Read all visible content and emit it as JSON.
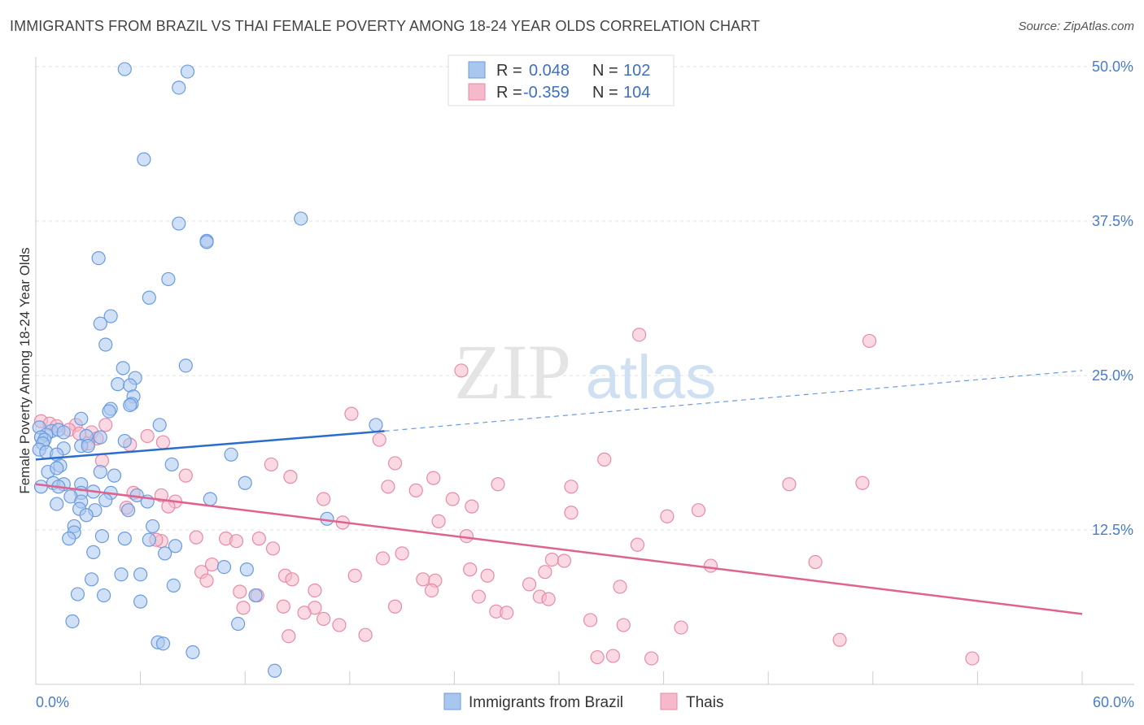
{
  "header": {
    "title": "IMMIGRANTS FROM BRAZIL VS THAI FEMALE POVERTY AMONG 18-24 YEAR OLDS CORRELATION CHART",
    "source": "Source: ZipAtlas.com"
  },
  "watermark": {
    "zip": "ZIP",
    "atlas": "atlas"
  },
  "colors": {
    "blue_fill": "#a9c6ee",
    "blue_stroke": "#6a9be0",
    "blue_line": "#2a6dcc",
    "pink_fill": "#f5b9cb",
    "pink_stroke": "#e88aa8",
    "pink_line": "#e0628e",
    "tick_text": "#4a7cc9",
    "grid": "#dddddd"
  },
  "legend": {
    "rows": [
      {
        "r_label": "R =",
        "r_value": "0.048",
        "n_label": "N =",
        "n_value": "102"
      },
      {
        "r_label": "R =",
        "r_value": "-0.359",
        "n_label": "N =",
        "n_value": "104"
      }
    ]
  },
  "bottom_legend": [
    "Immigrants from Brazil",
    "Thais"
  ],
  "chart_data": {
    "type": "scatter",
    "title": "IMMIGRANTS FROM BRAZIL VS THAI FEMALE POVERTY AMONG 18-24 YEAR OLDS CORRELATION CHART",
    "xlabel": "",
    "ylabel": "Female Poverty Among 18-24 Year Olds",
    "xlim": [
      0,
      60
    ],
    "ylim": [
      0,
      50
    ],
    "x_tick_labels": [
      "0.0%",
      "60.0%"
    ],
    "y_ticks": [
      12.5,
      25.0,
      37.5,
      50.0
    ],
    "y_tick_labels": [
      "12.5%",
      "25.0%",
      "37.5%",
      "50.0%"
    ],
    "grid": true,
    "legend_position": "top-center",
    "series": [
      {
        "name": "Immigrants from Brazil",
        "color": "#a9c6ee",
        "trend": {
          "x0": 0,
          "y0": 18.2,
          "x1": 20,
          "y1": 20.5,
          "dashed_to_x": 60,
          "dashed_to_y": 25.4
        },
        "points": [
          [
            5.1,
            49.8
          ],
          [
            8.7,
            49.6
          ],
          [
            8.2,
            48.3
          ],
          [
            6.2,
            42.5
          ],
          [
            15.2,
            37.7
          ],
          [
            8.2,
            37.3
          ],
          [
            9.8,
            35.9
          ],
          [
            9.8,
            35.8
          ],
          [
            3.6,
            34.5
          ],
          [
            7.6,
            32.8
          ],
          [
            6.5,
            31.3
          ],
          [
            4.3,
            29.8
          ],
          [
            3.7,
            29.2
          ],
          [
            4.0,
            27.5
          ],
          [
            8.6,
            25.8
          ],
          [
            5.0,
            25.6
          ],
          [
            5.7,
            24.8
          ],
          [
            4.7,
            24.3
          ],
          [
            5.4,
            24.2
          ],
          [
            5.6,
            23.3
          ],
          [
            5.5,
            22.7
          ],
          [
            5.4,
            22.6
          ],
          [
            4.3,
            22.3
          ],
          [
            2.6,
            21.5
          ],
          [
            4.2,
            22.1
          ],
          [
            7.1,
            21.0
          ],
          [
            19.5,
            21.0
          ],
          [
            0.2,
            20.8
          ],
          [
            0.9,
            20.5
          ],
          [
            1.3,
            20.6
          ],
          [
            0.6,
            20.2
          ],
          [
            0.3,
            20.0
          ],
          [
            0.5,
            19.8
          ],
          [
            0.4,
            19.5
          ],
          [
            1.6,
            20.4
          ],
          [
            2.9,
            20.1
          ],
          [
            1.6,
            19.1
          ],
          [
            2.6,
            19.3
          ],
          [
            3.7,
            20.0
          ],
          [
            3.0,
            19.3
          ],
          [
            5.1,
            19.7
          ],
          [
            0.2,
            19.0
          ],
          [
            0.6,
            18.8
          ],
          [
            1.2,
            18.6
          ],
          [
            11.2,
            18.6
          ],
          [
            7.8,
            17.8
          ],
          [
            1.4,
            17.7
          ],
          [
            0.7,
            17.2
          ],
          [
            1.2,
            17.5
          ],
          [
            3.7,
            17.2
          ],
          [
            4.5,
            16.9
          ],
          [
            1.0,
            16.3
          ],
          [
            2.6,
            16.2
          ],
          [
            1.6,
            16.2
          ],
          [
            12.0,
            16.3
          ],
          [
            1.3,
            16.0
          ],
          [
            0.3,
            16.0
          ],
          [
            3.3,
            15.6
          ],
          [
            2.6,
            15.5
          ],
          [
            4.3,
            15.5
          ],
          [
            5.8,
            15.3
          ],
          [
            2.0,
            15.2
          ],
          [
            10.0,
            15.0
          ],
          [
            4.0,
            14.9
          ],
          [
            2.6,
            14.8
          ],
          [
            6.4,
            14.8
          ],
          [
            1.2,
            14.6
          ],
          [
            2.5,
            14.2
          ],
          [
            3.4,
            14.1
          ],
          [
            5.3,
            14.1
          ],
          [
            2.9,
            13.7
          ],
          [
            16.7,
            13.4
          ],
          [
            6.7,
            12.8
          ],
          [
            2.2,
            12.8
          ],
          [
            2.2,
            12.3
          ],
          [
            3.8,
            12.0
          ],
          [
            1.9,
            11.8
          ],
          [
            5.1,
            11.8
          ],
          [
            6.5,
            11.7
          ],
          [
            8.0,
            11.2
          ],
          [
            3.3,
            10.7
          ],
          [
            7.4,
            10.6
          ],
          [
            10.8,
            9.5
          ],
          [
            3.2,
            8.5
          ],
          [
            12.1,
            9.3
          ],
          [
            4.9,
            8.9
          ],
          [
            6.0,
            8.9
          ],
          [
            7.9,
            8.0
          ],
          [
            12.6,
            7.2
          ],
          [
            2.4,
            7.3
          ],
          [
            3.9,
            7.2
          ],
          [
            6.0,
            6.7
          ],
          [
            2.1,
            5.1
          ],
          [
            11.6,
            4.9
          ],
          [
            7.0,
            3.4
          ],
          [
            7.3,
            3.3
          ],
          [
            9.0,
            2.6
          ],
          [
            13.7,
            1.1
          ]
        ]
      },
      {
        "name": "Thais",
        "color": "#f5b9cb",
        "trend": {
          "x0": 0,
          "y0": 16.2,
          "x1": 60,
          "y1": 5.7
        },
        "points": [
          [
            34.6,
            28.3
          ],
          [
            47.8,
            27.8
          ],
          [
            24.4,
            25.4
          ],
          [
            18.1,
            21.9
          ],
          [
            0.3,
            21.3
          ],
          [
            0.8,
            21.1
          ],
          [
            1.2,
            20.9
          ],
          [
            2.3,
            21.0
          ],
          [
            4.0,
            21.0
          ],
          [
            1.9,
            20.6
          ],
          [
            3.2,
            20.4
          ],
          [
            2.5,
            20.3
          ],
          [
            6.4,
            20.1
          ],
          [
            3.5,
            19.9
          ],
          [
            19.7,
            19.8
          ],
          [
            7.3,
            19.6
          ],
          [
            3.0,
            19.5
          ],
          [
            5.4,
            19.4
          ],
          [
            32.6,
            18.2
          ],
          [
            3.8,
            18.1
          ],
          [
            13.5,
            17.8
          ],
          [
            20.6,
            17.9
          ],
          [
            8.6,
            16.9
          ],
          [
            14.6,
            16.8
          ],
          [
            22.8,
            16.7
          ],
          [
            47.4,
            16.3
          ],
          [
            43.2,
            16.2
          ],
          [
            26.5,
            16.2
          ],
          [
            30.7,
            16.0
          ],
          [
            20.2,
            16.0
          ],
          [
            21.8,
            15.7
          ],
          [
            5.6,
            15.5
          ],
          [
            7.2,
            15.3
          ],
          [
            16.5,
            15.0
          ],
          [
            23.9,
            15.0
          ],
          [
            8.0,
            14.8
          ],
          [
            7.6,
            14.4
          ],
          [
            25.0,
            14.4
          ],
          [
            5.2,
            14.3
          ],
          [
            38.0,
            14.1
          ],
          [
            30.7,
            13.9
          ],
          [
            36.2,
            13.6
          ],
          [
            23.1,
            13.2
          ],
          [
            17.6,
            13.1
          ],
          [
            24.7,
            12.0
          ],
          [
            12.8,
            11.8
          ],
          [
            10.9,
            11.8
          ],
          [
            9.2,
            11.9
          ],
          [
            7.2,
            11.6
          ],
          [
            6.9,
            11.7
          ],
          [
            11.5,
            11.6
          ],
          [
            34.5,
            11.3
          ],
          [
            13.6,
            11.0
          ],
          [
            21.0,
            10.6
          ],
          [
            19.9,
            10.2
          ],
          [
            29.6,
            10.1
          ],
          [
            30.3,
            10.0
          ],
          [
            44.7,
            9.9
          ],
          [
            10.1,
            9.7
          ],
          [
            38.7,
            9.6
          ],
          [
            9.5,
            9.1
          ],
          [
            24.9,
            9.3
          ],
          [
            29.2,
            9.1
          ],
          [
            25.9,
            8.8
          ],
          [
            18.3,
            8.8
          ],
          [
            14.3,
            8.8
          ],
          [
            14.7,
            8.5
          ],
          [
            22.2,
            8.5
          ],
          [
            22.9,
            8.4
          ],
          [
            9.8,
            8.4
          ],
          [
            28.3,
            8.1
          ],
          [
            33.5,
            7.9
          ],
          [
            11.7,
            7.5
          ],
          [
            12.7,
            7.2
          ],
          [
            16.0,
            7.6
          ],
          [
            22.7,
            7.6
          ],
          [
            25.4,
            7.1
          ],
          [
            28.9,
            7.1
          ],
          [
            29.4,
            6.9
          ],
          [
            20.6,
            6.3
          ],
          [
            11.9,
            6.2
          ],
          [
            14.2,
            6.3
          ],
          [
            16.0,
            6.2
          ],
          [
            26.4,
            5.9
          ],
          [
            27.0,
            5.8
          ],
          [
            15.4,
            5.8
          ],
          [
            16.5,
            5.3
          ],
          [
            31.8,
            5.2
          ],
          [
            33.7,
            4.8
          ],
          [
            17.4,
            4.8
          ],
          [
            37.0,
            4.6
          ],
          [
            18.9,
            4.0
          ],
          [
            14.5,
            3.9
          ],
          [
            46.1,
            3.6
          ],
          [
            32.2,
            2.2
          ],
          [
            33.1,
            2.3
          ],
          [
            35.3,
            2.1
          ],
          [
            53.7,
            2.1
          ]
        ]
      }
    ]
  }
}
